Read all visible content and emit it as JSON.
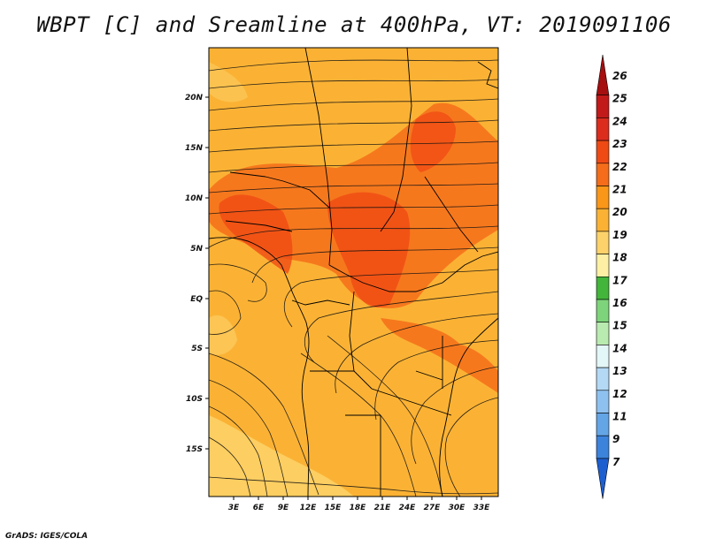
{
  "title": "WBPT [C] and Sreamline at 400hPa, VT: 2019091106",
  "credit": "GrADS: IGES/COLA",
  "map": {
    "field": "Wet-bulb potential temperature (WBPT) with streamlines",
    "level": "400hPa",
    "valid_time": "2019091106",
    "lon_ticks": [
      "3E",
      "6E",
      "9E",
      "12E",
      "15E",
      "18E",
      "21E",
      "24E",
      "27E",
      "30E",
      "33E"
    ],
    "lat_ticks": [
      "20N",
      "15N",
      "10N",
      "5N",
      "EQ",
      "5S",
      "10S",
      "15S"
    ]
  },
  "colorbar": {
    "labels": [
      "26",
      "25",
      "24",
      "23",
      "22",
      "21",
      "20",
      "19",
      "18",
      "17",
      "16",
      "15",
      "14",
      "13",
      "12",
      "11",
      "9",
      "7"
    ],
    "colors": [
      "#a50f0f",
      "#c21a1a",
      "#dc2c1e",
      "#f04a14",
      "#f56d1a",
      "#fa9618",
      "#fbb234",
      "#fdd26a",
      "#fdf0a4",
      "#43b53a",
      "#7ed47a",
      "#b9eab0",
      "#e4f7f8",
      "#b3d9f5",
      "#8ec1ef",
      "#64a5e6",
      "#3c83dc",
      "#1e5fd0"
    ]
  },
  "colors": {
    "base_field": "#fbb234",
    "warm_band": "#f56d1a",
    "hot_core": "#f04a14",
    "cool_patch": "#fdd26a",
    "coast": "#000000"
  }
}
